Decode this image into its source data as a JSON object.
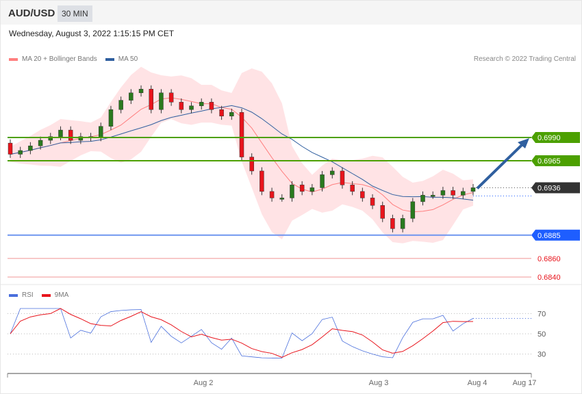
{
  "header": {
    "symbol": "AUD/USD",
    "timeframe": "30 MIN"
  },
  "date": "Wednesday, August 3, 2022 1:15:15 PM CET",
  "legend": {
    "ma20": "MA 20 + Bollinger Bands",
    "ma50": "MA 50",
    "rsi": "RSI",
    "rsi_ma": "9MA"
  },
  "credit": "Research © 2022 Trading Central",
  "colors": {
    "ma20": "#ff7f7f",
    "ma50": "#2f5f9f",
    "band": "#ffe3e5",
    "up": "#2a7a1e",
    "down": "#e8141c",
    "resistance": "#4ca000",
    "pivot": "#1e5eff",
    "support": "#e8141c",
    "last": "#333333",
    "rsi": "#4a6fdc",
    "rsi_ma": "#e8141c"
  },
  "chart_data": [
    {
      "type": "candlestick",
      "title": "",
      "ylim": [
        0.6833,
        0.7055
      ],
      "levels": [
        {
          "value": 0.699,
          "label": "0.6990",
          "kind": "resistance"
        },
        {
          "value": 0.6965,
          "label": "0.6965",
          "kind": "resistance"
        },
        {
          "value": 0.6936,
          "label": "0.6936",
          "kind": "last"
        },
        {
          "value": 0.6885,
          "label": "0.6885",
          "kind": "pivot"
        },
        {
          "value": 0.686,
          "label": "0.6860",
          "kind": "support"
        },
        {
          "value": 0.684,
          "label": "0.6840",
          "kind": "support"
        }
      ],
      "closes": [
        0.6972,
        0.6976,
        0.6981,
        0.6987,
        0.6991,
        0.6998,
        0.6987,
        0.6991,
        0.699,
        0.7002,
        0.702,
        0.703,
        0.7038,
        0.7042,
        0.702,
        0.7038,
        0.7028,
        0.702,
        0.7024,
        0.7028,
        0.702,
        0.7013,
        0.7017,
        0.6969,
        0.6954,
        0.6932,
        0.6925,
        0.6925,
        0.6939,
        0.6932,
        0.6936,
        0.695,
        0.6954,
        0.6939,
        0.6932,
        0.6925,
        0.6917,
        0.6903,
        0.6892,
        0.6903,
        0.6921,
        0.6928,
        0.6928,
        0.6933,
        0.6928,
        0.6932,
        0.6936
      ],
      "forecast": {
        "from": 0.6936,
        "to": 0.699,
        "direction": "up"
      },
      "xticks": [
        "Aug 2",
        "Aug 3",
        "Aug 4",
        "Aug 17"
      ]
    },
    {
      "type": "line",
      "title": "RSI",
      "yticks": [
        "70",
        "50",
        "30"
      ],
      "ylim": [
        20,
        80
      ]
    }
  ]
}
